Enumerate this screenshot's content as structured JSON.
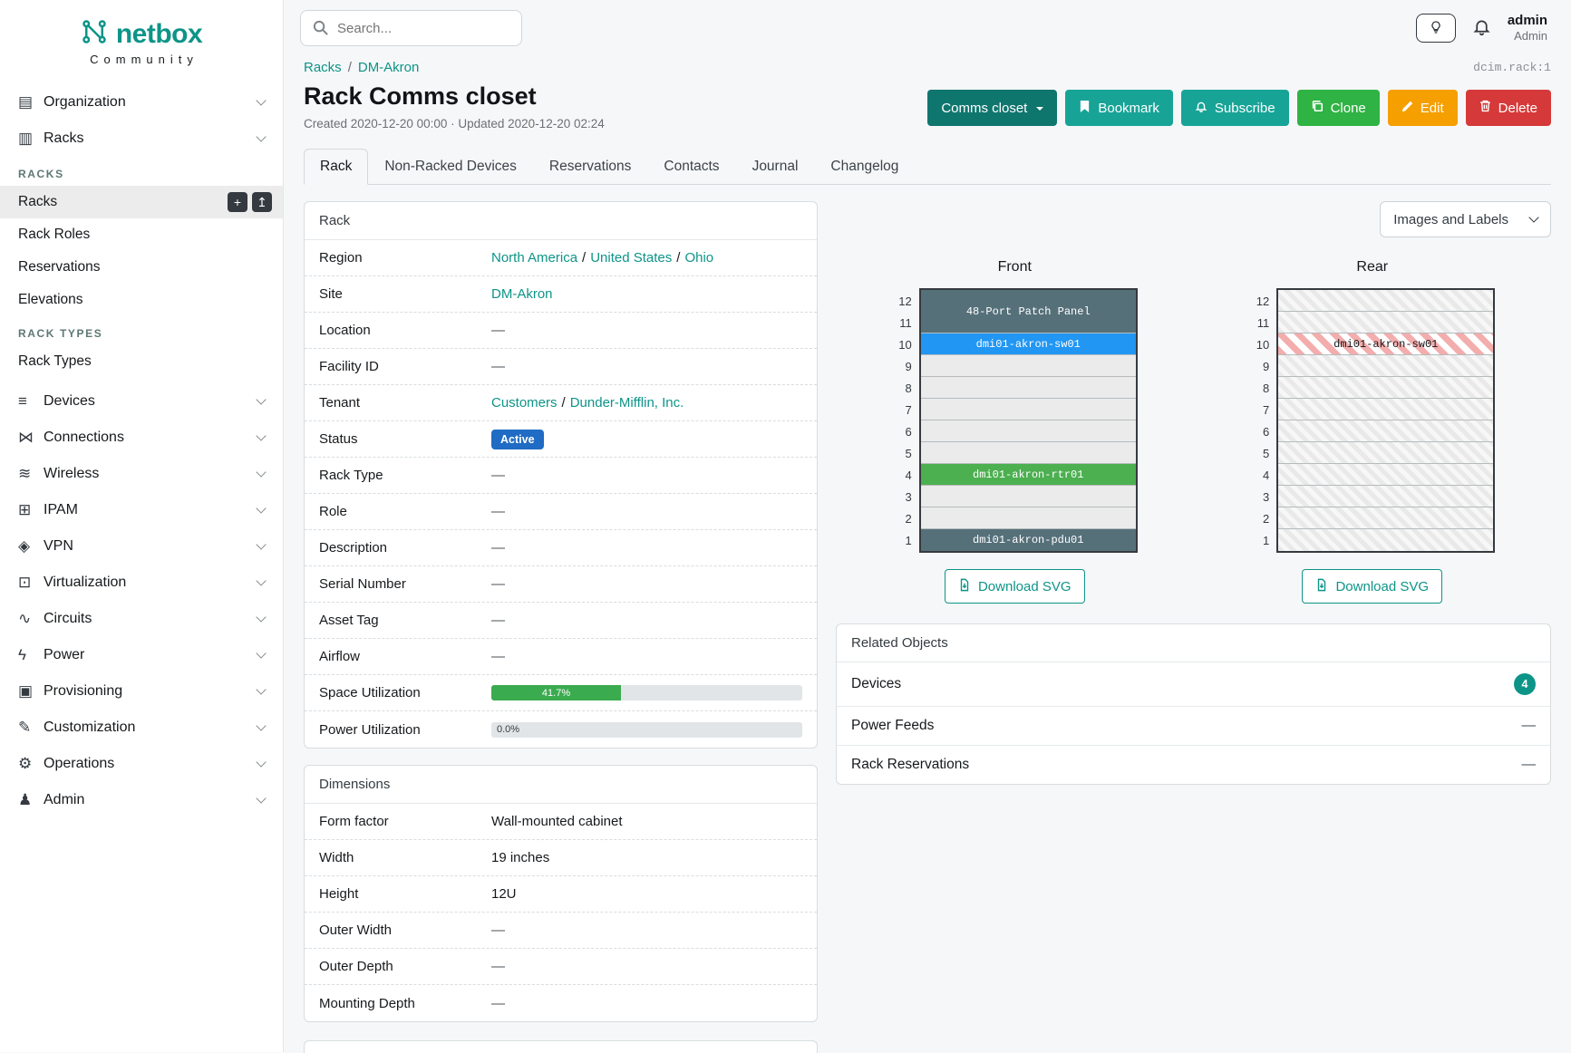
{
  "colors": {
    "accent_teal": "#0d9488",
    "button_teal": "#17a497",
    "dark_teal": "#0f766e",
    "clone_green": "#2fb344",
    "edit_orange": "#f59f00",
    "delete_red": "#d63939",
    "status_blue": "#206bc4",
    "device_blue": "#2196f3",
    "device_green": "#4caf50",
    "device_slate": "#56707a",
    "utilization_green": "#3aab4e"
  },
  "brand": {
    "name": "netbox",
    "tagline": "Community"
  },
  "topbar": {
    "search_placeholder": "Search...",
    "username": "admin",
    "role": "Admin"
  },
  "sidebar": {
    "items": [
      {
        "label": "Organization",
        "glyph": "▤"
      },
      {
        "label": "Racks",
        "glyph": "▥",
        "expanded": true
      },
      {
        "label": "Devices",
        "glyph": "≡"
      },
      {
        "label": "Connections",
        "glyph": "⋈"
      },
      {
        "label": "Wireless",
        "glyph": "≋"
      },
      {
        "label": "IPAM",
        "glyph": "⊞"
      },
      {
        "label": "VPN",
        "glyph": "◈"
      },
      {
        "label": "Virtualization",
        "glyph": "⊡"
      },
      {
        "label": "Circuits",
        "glyph": "∿"
      },
      {
        "label": "Power",
        "glyph": "ϟ"
      },
      {
        "label": "Provisioning",
        "glyph": "▣"
      },
      {
        "label": "Customization",
        "glyph": "✎"
      },
      {
        "label": "Operations",
        "glyph": "⚙"
      },
      {
        "label": "Admin",
        "glyph": "♟"
      }
    ],
    "racks_group": {
      "heading_racks": "RACKS",
      "racks_items": [
        "Racks",
        "Rack Roles",
        "Reservations",
        "Elevations"
      ],
      "heading_rack_types": "RACK TYPES",
      "rack_types_items": [
        "Rack Types"
      ],
      "active_item": "Racks",
      "add_label": "+",
      "import_label": "↥"
    }
  },
  "breadcrumb": {
    "items": [
      "Racks",
      "DM-Akron"
    ],
    "separator": "/"
  },
  "object_ref": "dcim.rack:1",
  "header": {
    "title": "Rack Comms closet",
    "meta": "Created 2020-12-20 00:00 · Updated 2020-12-20 02:24"
  },
  "actions": {
    "group_label": "Comms closet",
    "bookmark": "Bookmark",
    "subscribe": "Subscribe",
    "clone": "Clone",
    "edit": "Edit",
    "delete": "Delete"
  },
  "tabs": [
    {
      "label": "Rack",
      "active": true
    },
    {
      "label": "Non-Racked Devices",
      "active": false
    },
    {
      "label": "Reservations",
      "active": false
    },
    {
      "label": "Contacts",
      "active": false
    },
    {
      "label": "Journal",
      "active": false
    },
    {
      "label": "Changelog",
      "active": false
    }
  ],
  "rack_panel": {
    "title": "Rack",
    "link_separator": "/",
    "rows": {
      "region": {
        "label": "Region",
        "parts": [
          "North America",
          "United States",
          "Ohio"
        ]
      },
      "site": {
        "label": "Site",
        "link": "DM-Akron"
      },
      "location": {
        "label": "Location",
        "value": "—"
      },
      "facility_id": {
        "label": "Facility ID",
        "value": "—"
      },
      "tenant": {
        "label": "Tenant",
        "parts": [
          "Customers",
          "Dunder-Mifflin, Inc."
        ]
      },
      "status": {
        "label": "Status",
        "badge": "Active"
      },
      "rack_type": {
        "label": "Rack Type",
        "value": "—"
      },
      "role": {
        "label": "Role",
        "value": "—"
      },
      "description": {
        "label": "Description",
        "value": "—"
      },
      "serial_number": {
        "label": "Serial Number",
        "value": "—"
      },
      "asset_tag": {
        "label": "Asset Tag",
        "value": "—"
      },
      "airflow": {
        "label": "Airflow",
        "value": "—"
      },
      "space_utilization": {
        "label": "Space Utilization",
        "percent": 41.7,
        "text": "41.7%"
      },
      "power_utilization": {
        "label": "Power Utilization",
        "percent": 0,
        "text": "0.0%"
      }
    }
  },
  "dimensions_panel": {
    "title": "Dimensions",
    "rows": [
      {
        "label": "Form factor",
        "value": "Wall-mounted cabinet"
      },
      {
        "label": "Width",
        "value": "19 inches"
      },
      {
        "label": "Height",
        "value": "12U"
      },
      {
        "label": "Outer Width",
        "value": "—"
      },
      {
        "label": "Outer Depth",
        "value": "—"
      },
      {
        "label": "Mounting Depth",
        "value": "—"
      }
    ]
  },
  "elevation": {
    "toggle_label": "Images and Labels",
    "download_label": "Download SVG",
    "unit_numbers": [
      12,
      11,
      10,
      9,
      8,
      7,
      6,
      5,
      4,
      3,
      2,
      1
    ],
    "front": {
      "title": "Front",
      "units": [
        {
          "span": 2,
          "label": "48-Port Patch Panel",
          "style": "slate"
        },
        {
          "span": 1,
          "label": "dmi01-akron-sw01",
          "style": "blue"
        },
        {
          "span": 1,
          "style": "empty"
        },
        {
          "span": 1,
          "style": "empty"
        },
        {
          "span": 1,
          "style": "empty"
        },
        {
          "span": 1,
          "style": "empty"
        },
        {
          "span": 1,
          "style": "empty"
        },
        {
          "span": 1,
          "label": "dmi01-akron-rtr01",
          "style": "green"
        },
        {
          "span": 1,
          "style": "empty"
        },
        {
          "span": 1,
          "style": "empty"
        },
        {
          "span": 1,
          "label": "dmi01-akron-pdu01",
          "style": "slate"
        }
      ]
    },
    "rear": {
      "title": "Rear",
      "units": [
        {
          "span": 1,
          "style": "hatched"
        },
        {
          "span": 1,
          "style": "hatched"
        },
        {
          "span": 1,
          "label": "dmi01-akron-sw01",
          "style": "hatched-red"
        },
        {
          "span": 1,
          "style": "hatched"
        },
        {
          "span": 1,
          "style": "hatched"
        },
        {
          "span": 1,
          "style": "hatched"
        },
        {
          "span": 1,
          "style": "hatched"
        },
        {
          "span": 1,
          "style": "hatched"
        },
        {
          "span": 1,
          "style": "hatched"
        },
        {
          "span": 1,
          "style": "hatched"
        },
        {
          "span": 1,
          "style": "hatched"
        },
        {
          "span": 1,
          "style": "hatched"
        }
      ]
    }
  },
  "related_panel": {
    "title": "Related Objects",
    "rows": [
      {
        "label": "Devices",
        "badge": "4"
      },
      {
        "label": "Power Feeds",
        "value": "—"
      },
      {
        "label": "Rack Reservations",
        "value": "—"
      }
    ]
  }
}
